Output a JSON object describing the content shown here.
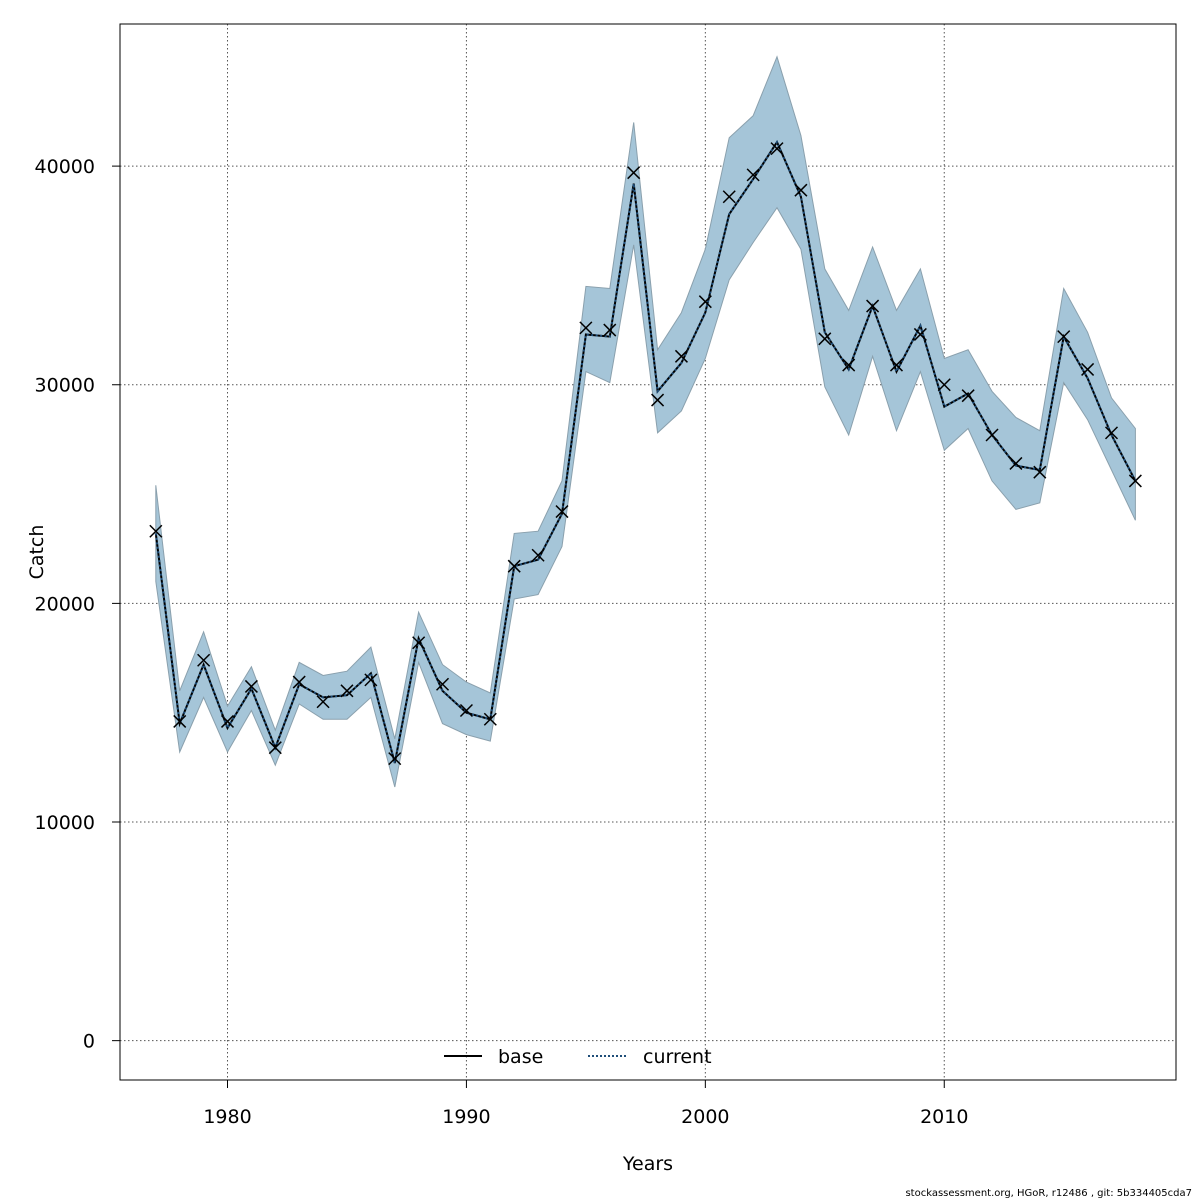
{
  "chart_data": {
    "type": "line",
    "title": "",
    "xlabel": "Years",
    "ylabel": "Catch",
    "xlim": [
      1975.5,
      2019.7
    ],
    "ylim": [
      -1800,
      46500
    ],
    "grid": true,
    "legend_position": "bottom-center",
    "x_ticks": [
      1980,
      1990,
      2000,
      2010
    ],
    "x_tick_labels": [
      "1980",
      "1990",
      "2000",
      "2010"
    ],
    "y_ticks": [
      0,
      10000,
      20000,
      30000,
      40000
    ],
    "y_tick_labels": [
      "0",
      "10000",
      "20000",
      "30000",
      "40000"
    ],
    "x": [
      1977,
      1978,
      1979,
      1980,
      1981,
      1982,
      1983,
      1984,
      1985,
      1986,
      1987,
      1988,
      1989,
      1990,
      1991,
      1992,
      1993,
      1994,
      1995,
      1996,
      1997,
      1998,
      1999,
      2000,
      2001,
      2002,
      2003,
      2004,
      2005,
      2006,
      2007,
      2008,
      2009,
      2010,
      2011,
      2012,
      2013,
      2014,
      2015,
      2016,
      2017,
      2018
    ],
    "series": [
      {
        "name": "base",
        "style": "solid",
        "color": "#000000",
        "values": [
          23200,
          14500,
          17200,
          14300,
          16100,
          13400,
          16300,
          15700,
          15800,
          16800,
          12700,
          18400,
          16000,
          15000,
          14700,
          21700,
          22000,
          24100,
          32300,
          32200,
          39200,
          29700,
          31000,
          33300,
          37800,
          39400,
          41100,
          38600,
          32400,
          30700,
          33600,
          30600,
          32700,
          29000,
          29600,
          27700,
          26300,
          26100,
          32200,
          30300,
          27700,
          25600
        ]
      },
      {
        "name": "current",
        "style": "dotted",
        "color": "#1f4e79",
        "values": [
          23200,
          14500,
          17200,
          14300,
          16100,
          13400,
          16300,
          15700,
          15800,
          16800,
          12700,
          18400,
          16000,
          15000,
          14700,
          21700,
          22000,
          24100,
          32300,
          32200,
          39200,
          29700,
          31000,
          33300,
          37800,
          39400,
          41100,
          38600,
          32400,
          30700,
          33600,
          30600,
          32700,
          29000,
          29600,
          27700,
          26300,
          26100,
          32200,
          30300,
          27700,
          25600
        ]
      }
    ],
    "observed": {
      "marker": "x",
      "values": [
        23300,
        14600,
        17400,
        14600,
        16200,
        13400,
        16400,
        15500,
        16000,
        16500,
        12900,
        18200,
        16300,
        15100,
        14700,
        21700,
        22200,
        24200,
        32600,
        32500,
        39700,
        29300,
        31300,
        33800,
        38600,
        39600,
        40800,
        38900,
        32100,
        30900,
        33600,
        30900,
        32300,
        30000,
        29500,
        27700,
        26400,
        26000,
        32200,
        30700,
        27800,
        25600
      ]
    },
    "confidence_band": {
      "color": "#a5c5d8",
      "edge_color": "#8aa0ad",
      "upper": [
        25400,
        16000,
        18700,
        15300,
        17100,
        14200,
        17300,
        16700,
        16900,
        18000,
        13800,
        19600,
        17200,
        16400,
        15900,
        23200,
        23300,
        25600,
        34500,
        34400,
        42000,
        31600,
        33300,
        36200,
        41300,
        42300,
        45000,
        41400,
        35300,
        33400,
        36300,
        33400,
        35300,
        31200,
        31600,
        29700,
        28500,
        27900,
        34400,
        32400,
        29400,
        28000
      ],
      "lower": [
        21000,
        13200,
        15700,
        13200,
        15100,
        12600,
        15400,
        14700,
        14700,
        15700,
        11600,
        17300,
        14500,
        14000,
        13700,
        20200,
        20400,
        22600,
        30600,
        30100,
        36400,
        27800,
        28800,
        31200,
        34800,
        36500,
        38100,
        36200,
        29900,
        27700,
        31300,
        27900,
        30600,
        27000,
        28000,
        25600,
        24300,
        24600,
        30100,
        28400,
        26100,
        23800
      ]
    }
  },
  "legend": {
    "items": [
      {
        "label": "base",
        "style": "solid",
        "color": "#000000"
      },
      {
        "label": "current",
        "style": "dotted",
        "color": "#1f4e79"
      }
    ]
  },
  "footer": {
    "text": "stockassessment.org, HGoR, r12486 , git: 5b334405cda7"
  }
}
